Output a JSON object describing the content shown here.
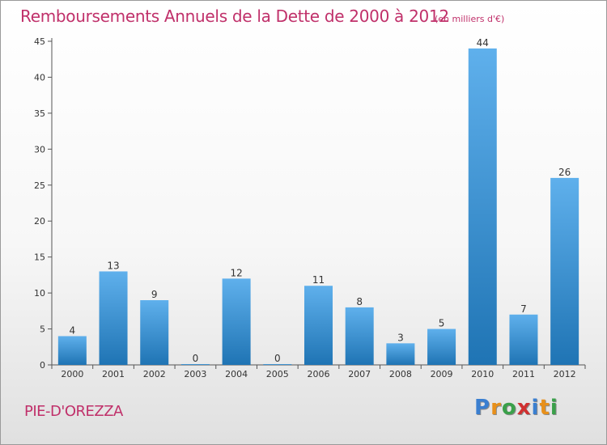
{
  "title": "Remboursements Annuels de la Dette de 2000 à 2012",
  "unit": "(en milliers d'€)",
  "commune": "PIE-D'OREZZA",
  "logo": {
    "letters": [
      "P",
      "r",
      "o",
      "x",
      "i",
      "t",
      "i"
    ],
    "colors": [
      "#3a7fd0",
      "#e8901a",
      "#3aa04a",
      "#d03030",
      "#3a7fd0",
      "#e8901a",
      "#3aa04a"
    ]
  },
  "colors": {
    "title": "#c0306a",
    "bar_top": "#5fb0ec",
    "bar_bottom": "#1f74b4"
  },
  "chart_data": {
    "type": "bar",
    "categories": [
      "2000",
      "2001",
      "2002",
      "2003",
      "2004",
      "2005",
      "2006",
      "2007",
      "2008",
      "2009",
      "2010",
      "2011",
      "2012"
    ],
    "values": [
      4,
      13,
      9,
      0,
      12,
      0,
      11,
      8,
      3,
      5,
      44,
      7,
      26
    ],
    "ylim": [
      0,
      45
    ],
    "yticks": [
      0,
      5,
      10,
      15,
      20,
      25,
      30,
      35,
      40,
      45
    ],
    "grid": false,
    "legend": "none"
  }
}
